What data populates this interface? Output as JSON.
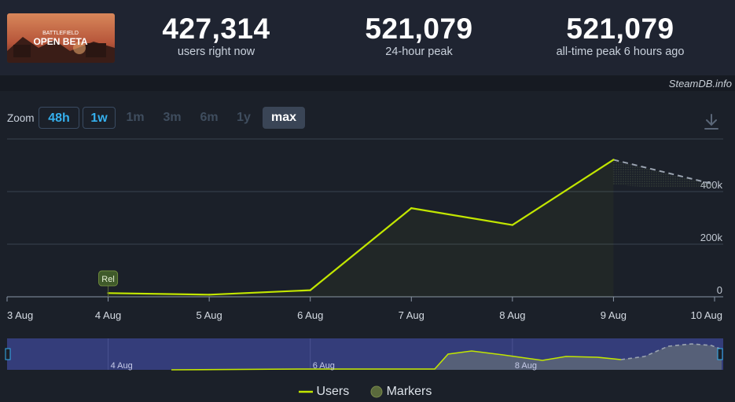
{
  "stats": [
    {
      "value": "427,314",
      "label": "users right now"
    },
    {
      "value": "521,079",
      "label": "24-hour peak"
    },
    {
      "value": "521,079",
      "label": "all-time peak 6 hours ago"
    }
  ],
  "thumbnail": {
    "line1": "BATTLEFIELD",
    "line2": "OPEN BETA"
  },
  "credit": "SteamDB.info",
  "zoom": {
    "label": "Zoom",
    "options": [
      "48h",
      "1w",
      "1m",
      "3m",
      "6m",
      "1y",
      "max"
    ],
    "active": [
      "48h",
      "1w"
    ],
    "selected": "max"
  },
  "legend": {
    "users": "Users",
    "markers": "Markers"
  },
  "colors": {
    "line": "#c2e600",
    "navigator_fill": "#5a6478",
    "navigator_bg": "#343d7a"
  },
  "chart_data": {
    "type": "line",
    "title": "",
    "xlabel": "",
    "ylabel": "",
    "x_ticks": [
      "3 Aug",
      "4 Aug",
      "5 Aug",
      "6 Aug",
      "7 Aug",
      "8 Aug",
      "9 Aug",
      "10 Aug"
    ],
    "y_ticks": [
      "0",
      "200k",
      "400k"
    ],
    "ylim": [
      0,
      600000
    ],
    "xlim": [
      0,
      7
    ],
    "series": [
      {
        "name": "Users",
        "x": [
          1,
          2,
          3,
          4,
          5,
          6
        ],
        "y": [
          14000,
          8000,
          25000,
          337000,
          273000,
          521079
        ]
      }
    ],
    "projection": {
      "x": [
        6,
        7
      ],
      "y": [
        521079,
        427314
      ]
    },
    "markers": [
      {
        "x": 1,
        "label": "Rel"
      }
    ],
    "navigator": {
      "ticks": [
        "4 Aug",
        "6 Aug",
        "8 Aug"
      ],
      "grid": false
    },
    "legend_position": "bottom-center"
  }
}
